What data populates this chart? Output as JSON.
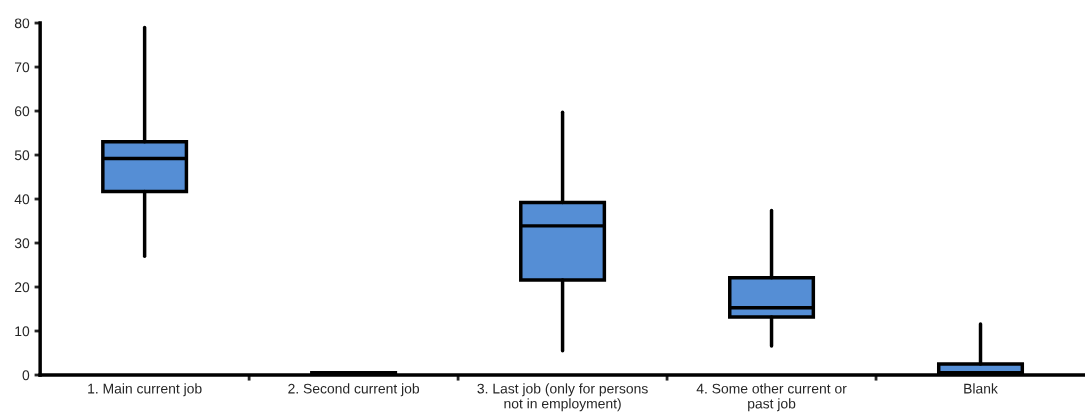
{
  "chart_data": {
    "type": "box",
    "categories": [
      "1. Main current job",
      "2. Second current job",
      "3. Last job (only for persons\nnot in employment)",
      "4. Some other current or\npast job",
      "Blank"
    ],
    "boxes": [
      {
        "low": 27,
        "q1": 41.7,
        "median": 49.2,
        "q3": 53,
        "high": 79
      },
      {
        "low": 0,
        "q1": 0,
        "median": 0,
        "q3": 0.5,
        "high": 0.5
      },
      {
        "low": 5.5,
        "q1": 21.6,
        "median": 33.9,
        "q3": 39.2,
        "high": 59.7
      },
      {
        "low": 6.6,
        "q1": 13.2,
        "median": 15.3,
        "q3": 22.1,
        "high": 37.4
      },
      {
        "low": 0,
        "q1": 0,
        "median": 0.5,
        "q3": 2.5,
        "high": 11.6
      }
    ],
    "color": "#558ed5",
    "ylim": [
      0,
      80
    ],
    "yticks": [
      0,
      10,
      20,
      30,
      40,
      50,
      60,
      70,
      80
    ],
    "grid": false,
    "legend": false
  }
}
